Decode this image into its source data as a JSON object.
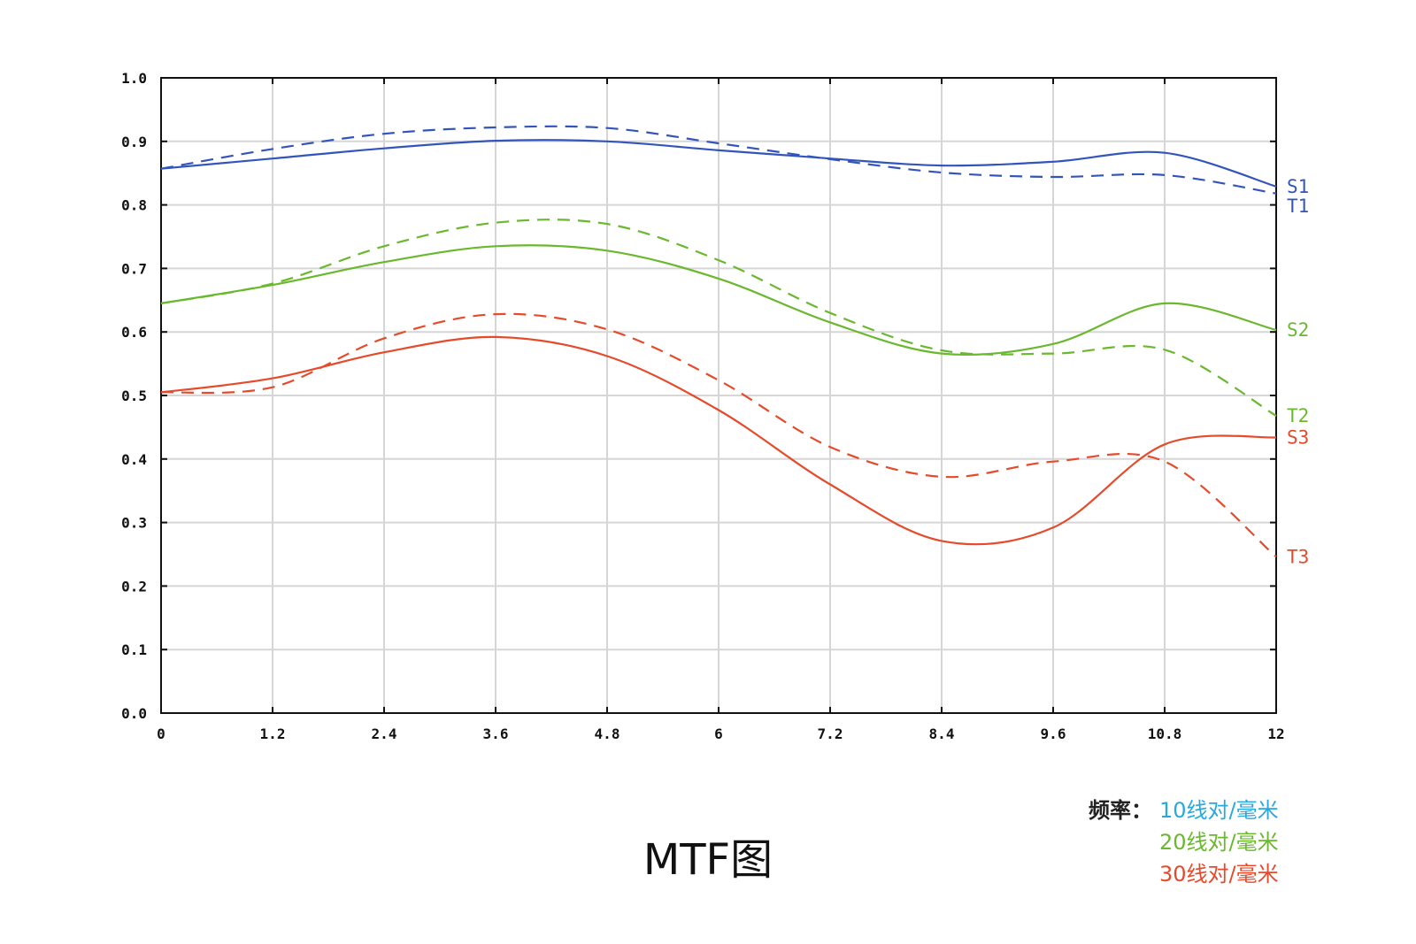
{
  "chart_data": {
    "type": "line",
    "title": "MTF图",
    "xlim": [
      0,
      12
    ],
    "ylim": [
      0,
      1.0
    ],
    "x_ticks": [
      "0",
      "1.2",
      "2.4",
      "3.6",
      "4.8",
      "6",
      "7.2",
      "8.4",
      "9.6",
      "10.8",
      "12"
    ],
    "y_ticks": [
      "0.0",
      "0.1",
      "0.2",
      "0.3",
      "0.4",
      "0.5",
      "0.6",
      "0.7",
      "0.8",
      "0.9",
      "1.0"
    ],
    "grid": true,
    "x": [
      0,
      1.2,
      2.4,
      3.6,
      4.8,
      6,
      7.2,
      8.4,
      9.6,
      10.8,
      12
    ],
    "series": [
      {
        "name": "S1",
        "color": "#3355bb",
        "style": "solid",
        "values": [
          0.857,
          0.873,
          0.889,
          0.901,
          0.9,
          0.886,
          0.873,
          0.862,
          0.868,
          0.882,
          0.829
        ]
      },
      {
        "name": "T1",
        "color": "#3355bb",
        "style": "dashed",
        "values": [
          0.857,
          0.888,
          0.912,
          0.922,
          0.921,
          0.897,
          0.872,
          0.851,
          0.844,
          0.847,
          0.818
        ]
      },
      {
        "name": "S2",
        "color": "#6ab82e",
        "style": "solid",
        "values": [
          0.645,
          0.674,
          0.71,
          0.735,
          0.728,
          0.684,
          0.615,
          0.566,
          0.581,
          0.645,
          0.603
        ]
      },
      {
        "name": "T2",
        "color": "#6ab82e",
        "style": "dashed",
        "values": [
          0.645,
          0.676,
          0.735,
          0.772,
          0.77,
          0.713,
          0.63,
          0.571,
          0.566,
          0.572,
          0.468
        ]
      },
      {
        "name": "S3",
        "color": "#e64a2a",
        "style": "solid",
        "values": [
          0.505,
          0.527,
          0.568,
          0.592,
          0.562,
          0.477,
          0.36,
          0.271,
          0.292,
          0.423,
          0.434
        ]
      },
      {
        "name": "T3",
        "color": "#e64a2a",
        "style": "dashed",
        "values": [
          0.505,
          0.513,
          0.59,
          0.628,
          0.604,
          0.524,
          0.419,
          0.372,
          0.396,
          0.396,
          0.246
        ]
      }
    ]
  },
  "title": "MTF图",
  "legend": {
    "label": "频率：",
    "items": [
      {
        "text": "10线对/毫米",
        "color": "#29a8e0"
      },
      {
        "text": "20线对/毫米",
        "color": "#6ab82e"
      },
      {
        "text": "30线对/毫米",
        "color": "#e64a2a"
      }
    ]
  }
}
